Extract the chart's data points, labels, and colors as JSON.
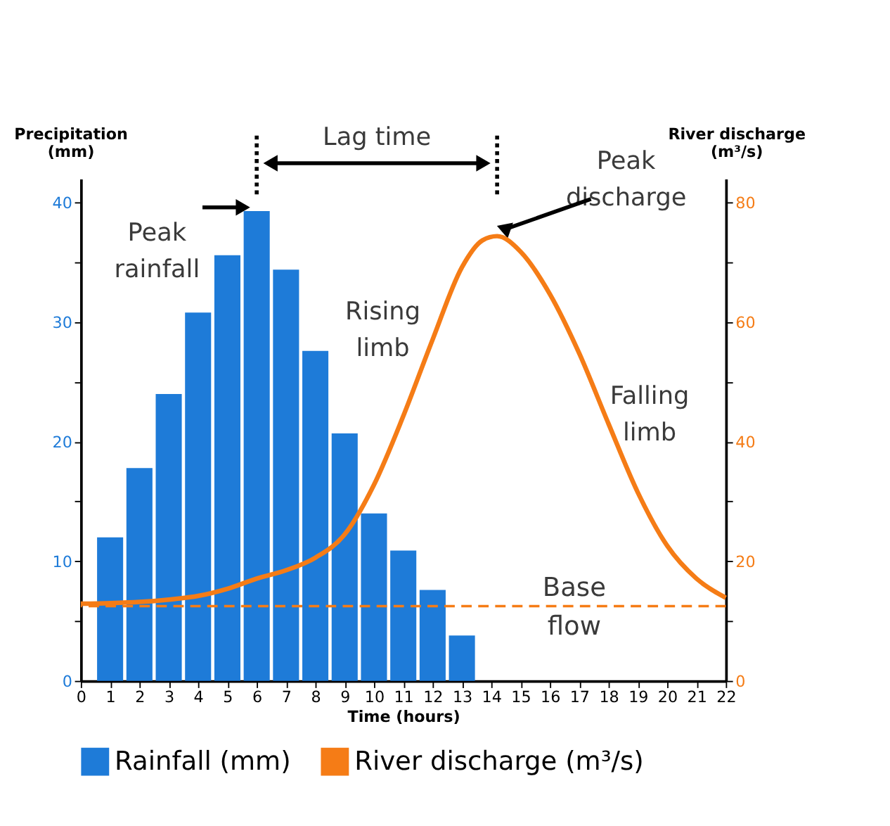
{
  "chart_data": {
    "type": "bar",
    "xlabel": "Time (hours)",
    "ylabel": "Precipitation (mm)",
    "y2label": "River discharge (m³/s)",
    "xlim": [
      0,
      22
    ],
    "xticks": [
      0,
      1,
      2,
      3,
      4,
      5,
      6,
      7,
      8,
      9,
      10,
      11,
      12,
      13,
      14,
      15,
      16,
      17,
      18,
      19,
      20,
      21,
      22
    ],
    "ylim": [
      0,
      42
    ],
    "yticks": [
      0,
      {
        "value": 5,
        "label": null
      },
      10,
      {
        "value": 15,
        "label": null
      },
      20,
      {
        "value": 25,
        "label": null
      },
      30,
      {
        "value": 35,
        "label": null
      },
      40
    ],
    "y2lim": [
      0,
      84
    ],
    "y2ticks": [
      0,
      {
        "value": 10,
        "label": null
      },
      20,
      {
        "value": 30,
        "label": null
      },
      40,
      {
        "value": 50,
        "label": null
      },
      60,
      {
        "value": 70,
        "label": null
      },
      80
    ],
    "grid": false,
    "legend": "bottom",
    "series": [
      {
        "name": "Rainfall (mm)",
        "color": "#1e7bd8",
        "x": [
          1,
          2,
          3,
          4,
          5,
          6,
          7,
          8,
          9,
          10,
          11,
          12,
          13
        ],
        "values": [
          12.0,
          17.8,
          24.0,
          30.8,
          35.6,
          39.3,
          34.4,
          27.6,
          20.7,
          14.0,
          10.9,
          7.6,
          3.8
        ]
      },
      {
        "name": "River discharge (m³/s)",
        "type": "line",
        "axis": "y2",
        "color": "#f57c16",
        "x": [
          0,
          1,
          2,
          3,
          4,
          5,
          6,
          7,
          8,
          9,
          10,
          11,
          12,
          13,
          13.7,
          14.2,
          15,
          16,
          17,
          18,
          19,
          20,
          21,
          22
        ],
        "values": [
          12.9,
          13.0,
          13.2,
          13.6,
          14.2,
          15.4,
          17.1,
          18.5,
          20.6,
          24.5,
          32.8,
          44.3,
          57.1,
          69.2,
          73.7,
          74.4,
          71.8,
          64.7,
          54.8,
          43.0,
          31.5,
          22.6,
          17.1,
          13.9
        ]
      }
    ],
    "ref_lines": [
      {
        "axis": "y2",
        "value": 12.5,
        "label": "Base flow",
        "color": "#f57c16",
        "line_style": "dashed"
      }
    ],
    "annotations": [
      "Peak rainfall",
      "Lag time",
      "Peak discharge",
      "Rising limb",
      "Falling limb"
    ]
  }
}
